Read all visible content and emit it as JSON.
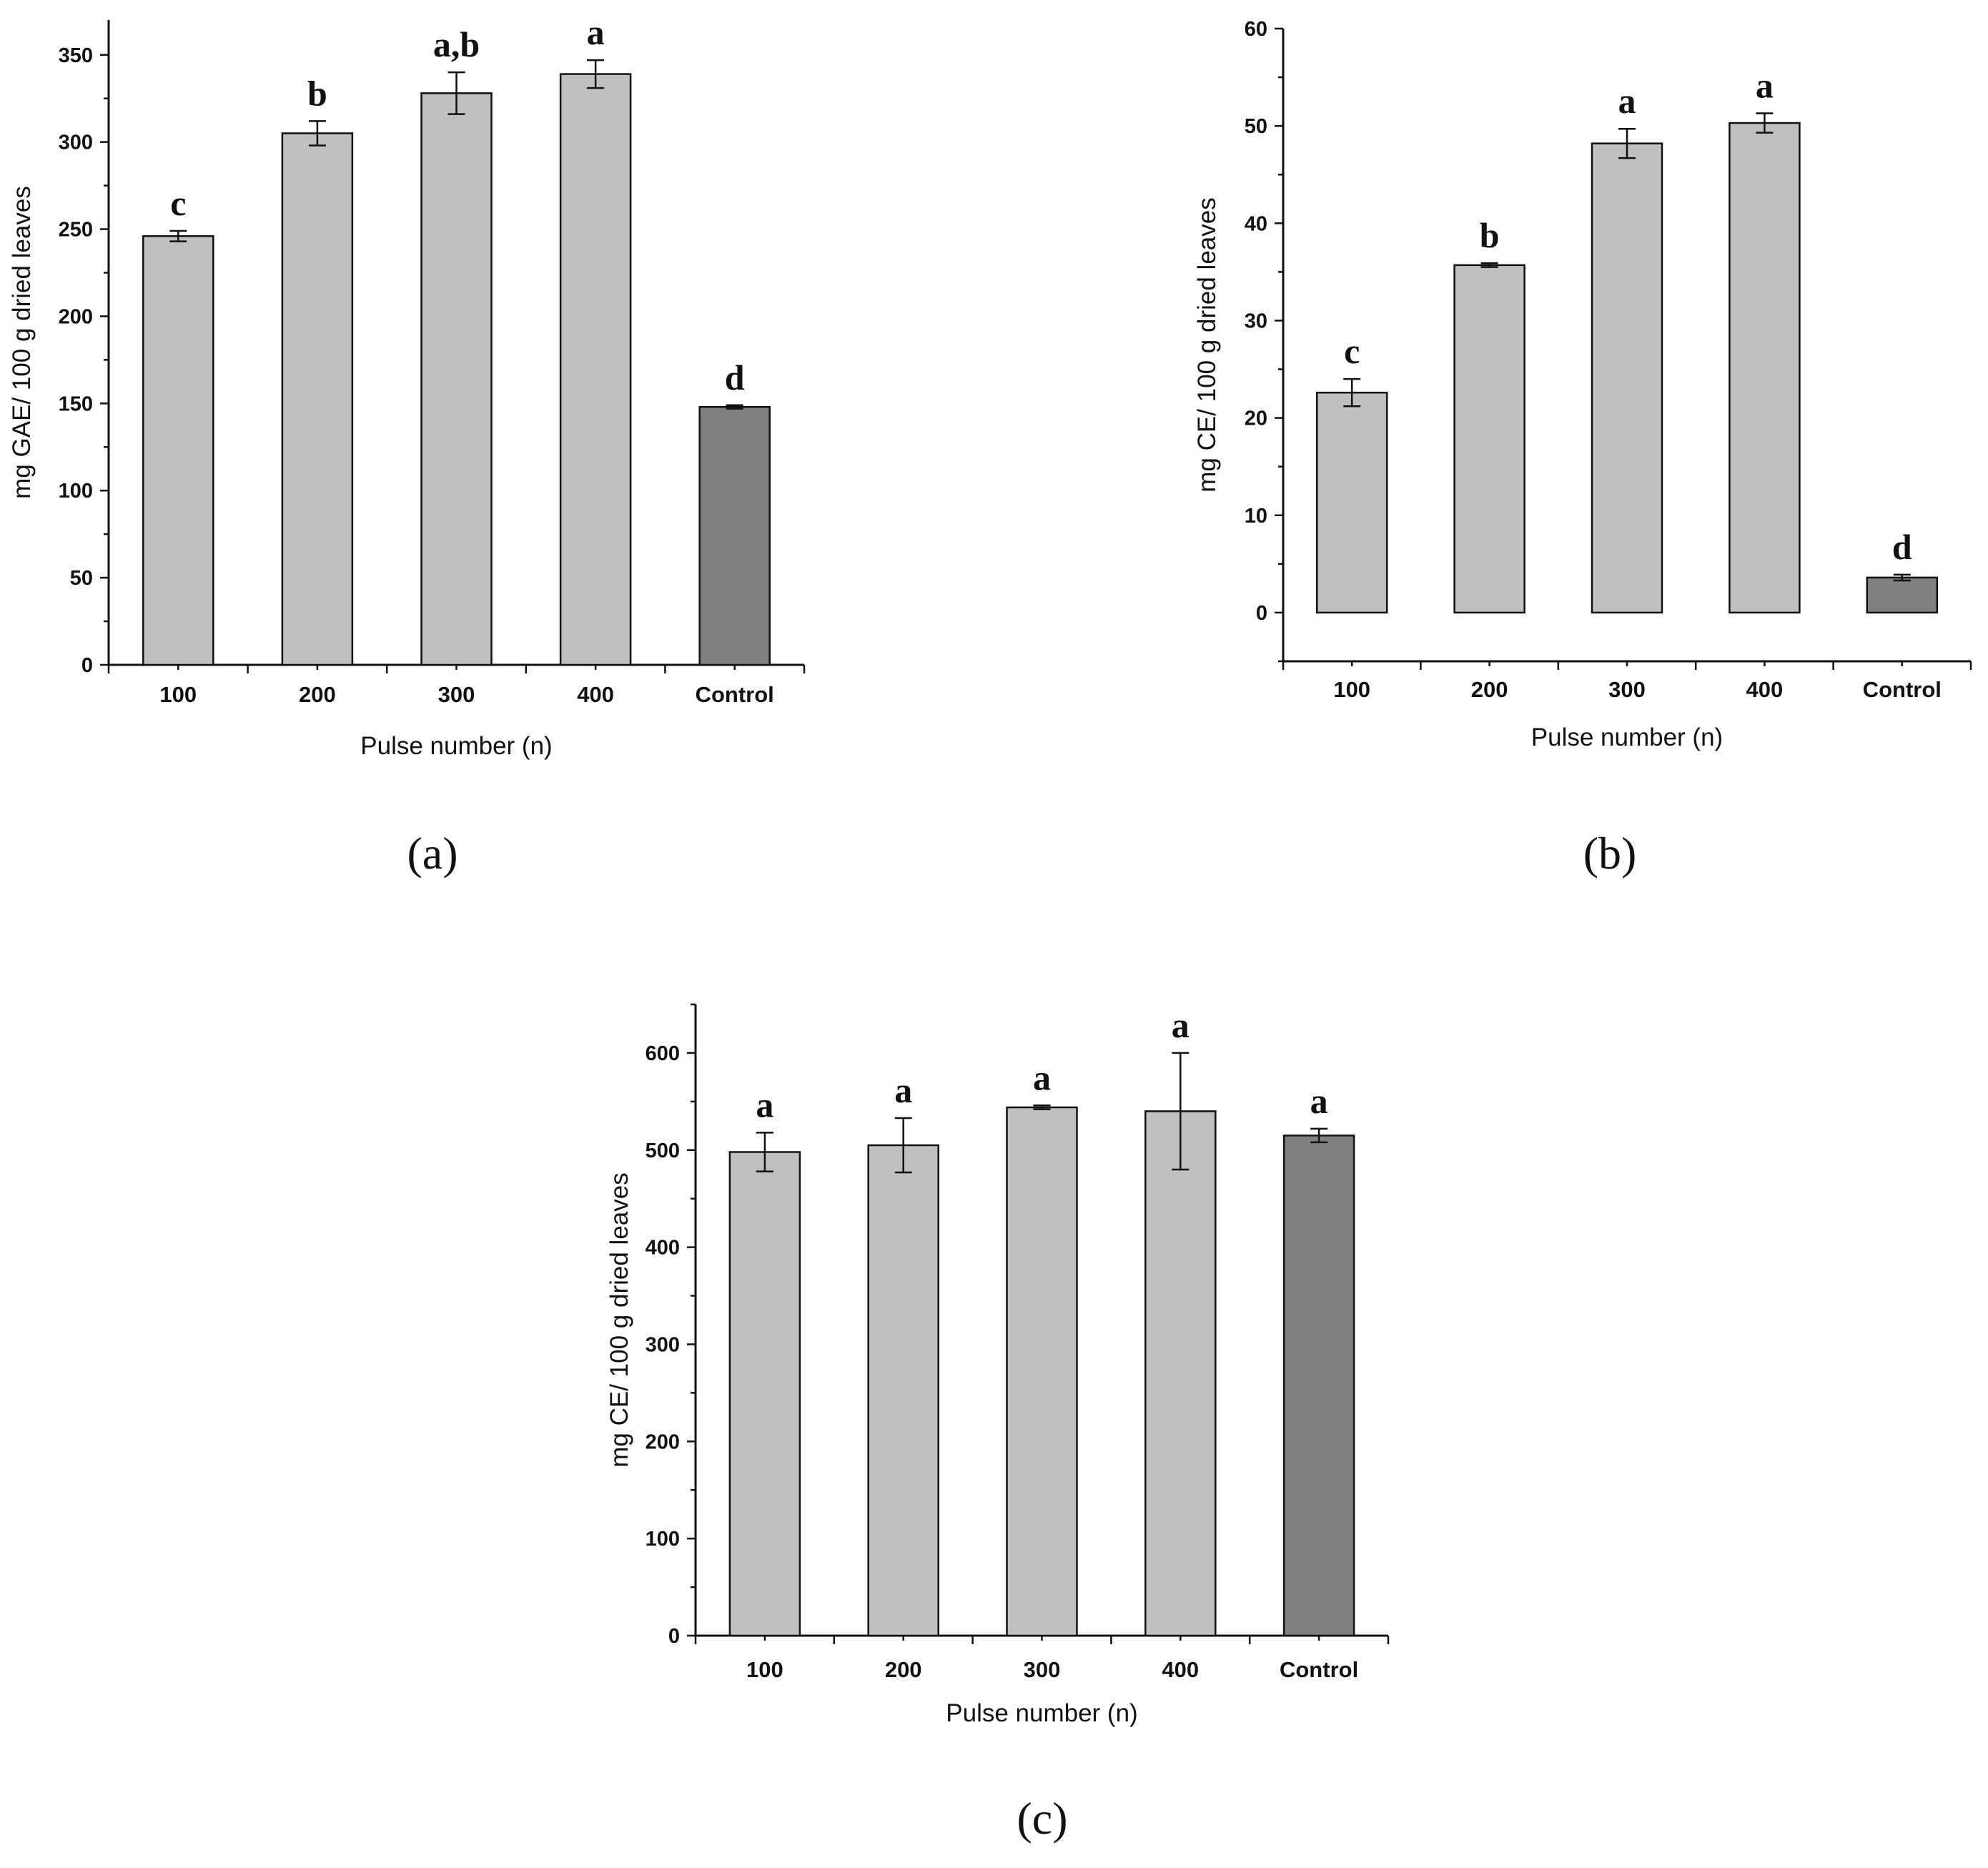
{
  "chart_data": [
    {
      "panel_label": "(a)",
      "type": "bar",
      "xlabel": "Pulse number (n)",
      "ylabel": "mg GAE/ 100 g dried leaves",
      "ylim": [
        0,
        370
      ],
      "yticks": [
        0,
        50,
        100,
        150,
        200,
        250,
        300,
        350
      ],
      "categories": [
        "100",
        "200",
        "300",
        "400",
        "Control"
      ],
      "values": [
        246,
        305,
        328,
        339,
        148
      ],
      "errors": [
        3,
        7,
        12,
        8,
        1
      ],
      "significance": [
        "c",
        "b",
        "a,b",
        "a",
        "d"
      ],
      "bar_colors": [
        "#c0c0c0",
        "#c0c0c0",
        "#c0c0c0",
        "#c0c0c0",
        "#808080"
      ]
    },
    {
      "panel_label": "(b)",
      "type": "bar",
      "xlabel": "Pulse number (n)",
      "ylabel": "mg CE/ 100 g dried leaves",
      "ylim": [
        -5,
        60
      ],
      "yticks": [
        0,
        10,
        20,
        30,
        40,
        50,
        60
      ],
      "categories": [
        "100",
        "200",
        "300",
        "400",
        "Control"
      ],
      "values": [
        22.6,
        35.7,
        48.2,
        50.3,
        3.6
      ],
      "errors": [
        1.4,
        0.2,
        1.5,
        1.0,
        0.3
      ],
      "significance": [
        "c",
        "b",
        "a",
        "a",
        "d"
      ],
      "bar_colors": [
        "#c0c0c0",
        "#c0c0c0",
        "#c0c0c0",
        "#c0c0c0",
        "#808080"
      ]
    },
    {
      "panel_label": "(c)",
      "type": "bar",
      "xlabel": "Pulse number (n)",
      "ylabel": "mg CE/ 100 g dried leaves",
      "ylim": [
        0,
        650
      ],
      "yticks": [
        0,
        100,
        200,
        300,
        400,
        500,
        600
      ],
      "categories": [
        "100",
        "200",
        "300",
        "400",
        "Control"
      ],
      "values": [
        498,
        505,
        544,
        540,
        515
      ],
      "errors": [
        20,
        28,
        2,
        60,
        7
      ],
      "significance": [
        "a",
        "a",
        "a",
        "a",
        "a"
      ],
      "bar_colors": [
        "#c0c0c0",
        "#c0c0c0",
        "#c0c0c0",
        "#c0c0c0",
        "#808080"
      ]
    }
  ]
}
